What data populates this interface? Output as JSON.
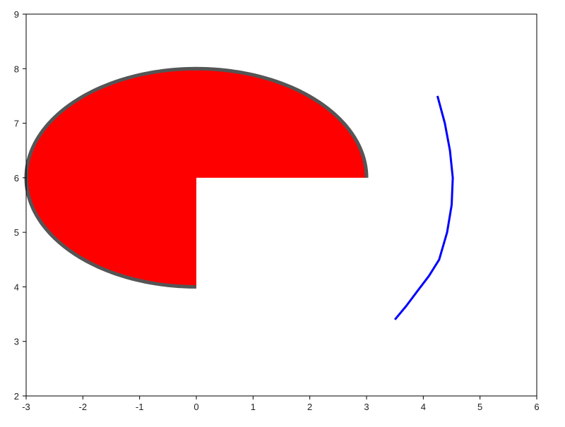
{
  "chart_data": {
    "type": "line",
    "title": "",
    "xlabel": "",
    "ylabel": "",
    "xlim": [
      -3,
      6
    ],
    "ylim": [
      2,
      9
    ],
    "xticks": [
      "-3",
      "-2",
      "-1",
      "0",
      "1",
      "2",
      "3",
      "4",
      "5",
      "6"
    ],
    "yticks": [
      "2",
      "3",
      "4",
      "5",
      "6",
      "7",
      "8",
      "9"
    ],
    "grid": false,
    "shapes": [
      {
        "kind": "elliptical-sector",
        "center": [
          0,
          6
        ],
        "radii": [
          3,
          2
        ],
        "start_angle_deg": 0,
        "end_angle_deg": 270,
        "fill": "#ff0000",
        "outline": "#555555"
      }
    ],
    "series": [
      {
        "color": "#0000ff",
        "x": [
          4.25,
          4.38,
          4.47,
          4.52,
          4.5,
          4.42,
          4.28,
          4.1,
          3.88,
          3.7,
          3.5
        ],
        "y": [
          7.5,
          7.0,
          6.5,
          6.0,
          5.5,
          5.0,
          4.5,
          4.2,
          3.9,
          3.65,
          3.4
        ]
      }
    ]
  }
}
